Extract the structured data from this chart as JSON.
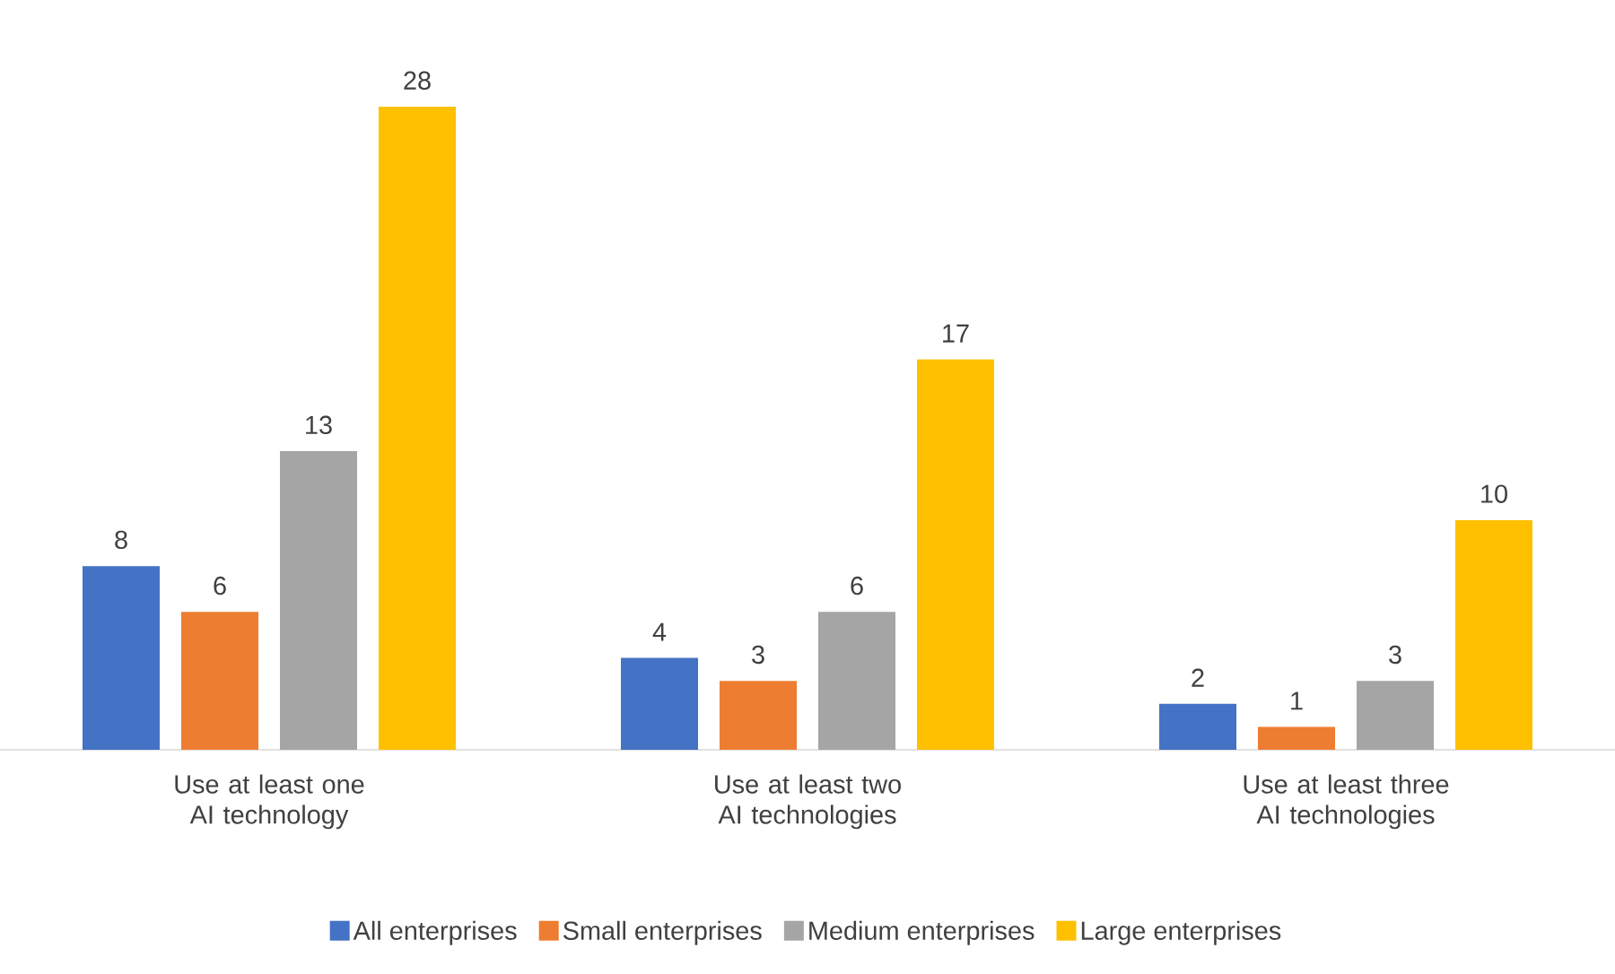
{
  "chart_data": {
    "type": "bar",
    "categories": [
      "Use at least one AI technology",
      "Use at least two AI technologies",
      "Use at least three AI technologies"
    ],
    "series": [
      {
        "name": "All enterprises",
        "color": "#4472c4",
        "values": [
          8,
          4,
          2
        ]
      },
      {
        "name": "Small enterprises",
        "color": "#ed7d31",
        "values": [
          6,
          3,
          1
        ]
      },
      {
        "name": "Medium enterprises",
        "color": "#a5a5a5",
        "values": [
          13,
          6,
          3
        ]
      },
      {
        "name": "Large enterprises",
        "color": "#ffc000",
        "values": [
          28,
          17,
          10
        ]
      }
    ],
    "data_labels": true,
    "legend": "bottom"
  }
}
